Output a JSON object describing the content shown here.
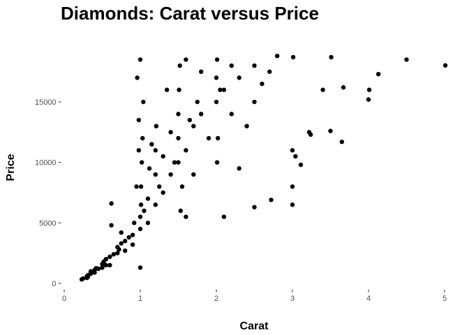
{
  "chart_data": {
    "type": "scatter",
    "title": "Diamonds: Carat versus Price",
    "x_label": "Carat",
    "y_label": "Price",
    "color": "#000000",
    "grid": false,
    "xlim": [
      -0.05,
      5.05
    ],
    "ylim": [
      -400,
      19700
    ],
    "xticks": [
      0,
      1,
      2,
      3,
      4,
      5
    ],
    "yticks": [
      0,
      5000,
      10000,
      15000
    ],
    "x": [
      0.23,
      0.25,
      0.3,
      0.3,
      0.31,
      0.32,
      0.35,
      0.35,
      0.4,
      0.4,
      0.42,
      0.45,
      0.5,
      0.5,
      0.52,
      0.55,
      0.55,
      0.6,
      0.6,
      0.62,
      0.65,
      0.7,
      0.7,
      0.72,
      0.75,
      0.75,
      0.8,
      0.8,
      0.85,
      0.9,
      0.9,
      0.92,
      0.95,
      0.98,
      1.0,
      1.0,
      1.0,
      1.01,
      1.01,
      1.02,
      1.03,
      1.04,
      1.05,
      1.1,
      1.1,
      1.12,
      1.15,
      1.2,
      1.2,
      1.2,
      1.21,
      1.25,
      1.3,
      1.3,
      1.35,
      1.4,
      1.4,
      1.45,
      1.5,
      1.5,
      1.5,
      1.51,
      1.52,
      1.53,
      1.55,
      1.6,
      1.6,
      1.65,
      1.7,
      1.7,
      1.75,
      1.8,
      1.8,
      1.9,
      2.0,
      2.0,
      2.01,
      2.01,
      2.02,
      2.05,
      2.1,
      2.1,
      2.2,
      2.2,
      2.3,
      2.3,
      2.4,
      2.5,
      2.5,
      2.5,
      2.6,
      2.7,
      2.72,
      2.8,
      0.96,
      0.98,
      0.62,
      1.6,
      1.0,
      3.0,
      3.0,
      3.0,
      3.01,
      3.04,
      3.11,
      3.22,
      3.24,
      3.4,
      3.5,
      3.51,
      3.65,
      3.67,
      4.0,
      4.01,
      4.13,
      4.5,
      5.01
    ],
    "values": [
      326,
      400,
      450,
      600,
      520,
      700,
      800,
      1000,
      900,
      1100,
      1250,
      1200,
      1300,
      1600,
      1800,
      2000,
      1500,
      2200,
      1500,
      6600,
      2400,
      2500,
      3000,
      2800,
      3300,
      4200,
      3500,
      2700,
      3800,
      4000,
      3200,
      5000,
      8000,
      11000,
      4500,
      5500,
      18500,
      6500,
      8000,
      10000,
      12000,
      15000,
      6000,
      5000,
      7000,
      9500,
      11500,
      6500,
      9000,
      11000,
      13000,
      8000,
      7500,
      10500,
      16000,
      9000,
      12500,
      10000,
      10000,
      12000,
      14000,
      16000,
      18000,
      6000,
      8000,
      11000,
      18500,
      13500,
      13000,
      9000,
      15000,
      14000,
      17500,
      12000,
      15000,
      17000,
      18500,
      10000,
      12000,
      16000,
      16000,
      5500,
      14000,
      18000,
      17000,
      9500,
      13000,
      15000,
      18000,
      6300,
      16500,
      17500,
      6900,
      18800,
      17000,
      13500,
      4800,
      5500,
      1300,
      6500,
      8000,
      11000,
      18700,
      10500,
      9800,
      12500,
      12300,
      16000,
      12600,
      18700,
      11700,
      16200,
      15200,
      16000,
      17300,
      18500,
      18018
    ]
  }
}
